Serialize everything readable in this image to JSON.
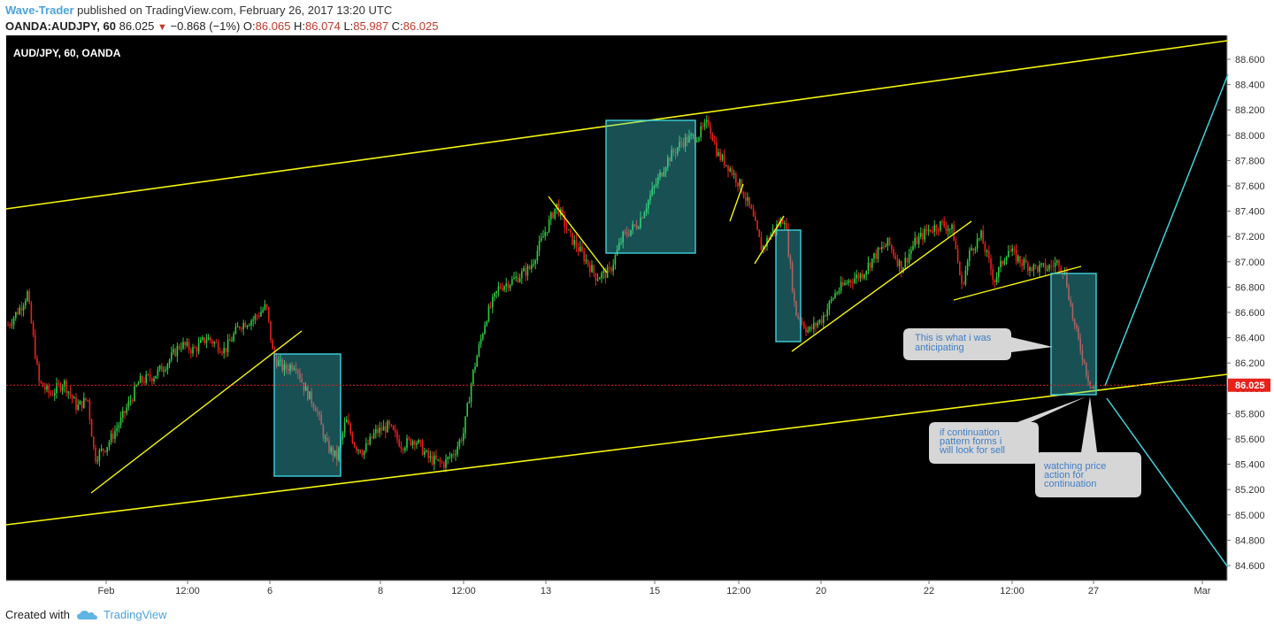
{
  "header": {
    "author": "Wave-Trader",
    "published": " published on TradingView.com, February 26, 2017 13:20 UTC"
  },
  "ohlc": {
    "symbol": "OANDA:AUDJPY, 60",
    "last": "86.025",
    "change": "−0.868 (−1%)",
    "o_label": "O:",
    "o": "86.065",
    "h_label": "H:",
    "h": "86.074",
    "l_label": "L:",
    "l": "85.987",
    "c_label": "C:",
    "c": "86.025"
  },
  "chart_data": {
    "type": "candlestick",
    "title": "AUD/JPY, 60, OANDA",
    "ylim": [
      84.5,
      88.75
    ],
    "y_ticks": [
      "84.600",
      "84.800",
      "85.000",
      "85.200",
      "85.400",
      "85.600",
      "85.800",
      "86.000",
      "86.200",
      "86.400",
      "86.600",
      "86.800",
      "87.000",
      "87.200",
      "87.400",
      "87.600",
      "87.800",
      "88.000",
      "88.200",
      "88.400",
      "88.600"
    ],
    "x_ticks": [
      "Feb",
      "12:00",
      "6",
      "8",
      "12:00",
      "13",
      "15",
      "12:00",
      "20",
      "22",
      "12:00",
      "27",
      "Mar"
    ],
    "current_price": "86.025",
    "path": [
      [
        0,
        86.5
      ],
      [
        15,
        86.65
      ],
      [
        22,
        86.75
      ],
      [
        35,
        86.05
      ],
      [
        48,
        85.95
      ],
      [
        63,
        86.05
      ],
      [
        78,
        85.85
      ],
      [
        90,
        85.92
      ],
      [
        98,
        85.45
      ],
      [
        112,
        85.55
      ],
      [
        128,
        85.75
      ],
      [
        148,
        86.05
      ],
      [
        165,
        86.1
      ],
      [
        180,
        86.2
      ],
      [
        195,
        86.35
      ],
      [
        210,
        86.3
      ],
      [
        225,
        86.4
      ],
      [
        245,
        86.3
      ],
      [
        262,
        86.5
      ],
      [
        278,
        86.55
      ],
      [
        292,
        86.65
      ],
      [
        300,
        86.25
      ],
      [
        312,
        86.15
      ],
      [
        325,
        86.2
      ],
      [
        335,
        86.0
      ],
      [
        348,
        85.85
      ],
      [
        360,
        85.55
      ],
      [
        372,
        85.45
      ],
      [
        382,
        85.75
      ],
      [
        392,
        85.55
      ],
      [
        402,
        85.5
      ],
      [
        415,
        85.65
      ],
      [
        430,
        85.7
      ],
      [
        445,
        85.55
      ],
      [
        460,
        85.6
      ],
      [
        475,
        85.45
      ],
      [
        492,
        85.4
      ],
      [
        505,
        85.5
      ],
      [
        515,
        85.65
      ],
      [
        525,
        86.1
      ],
      [
        540,
        86.55
      ],
      [
        555,
        86.8
      ],
      [
        570,
        86.85
      ],
      [
        590,
        86.95
      ],
      [
        605,
        87.2
      ],
      [
        620,
        87.45
      ],
      [
        635,
        87.2
      ],
      [
        650,
        87.05
      ],
      [
        665,
        86.88
      ],
      [
        680,
        86.92
      ],
      [
        695,
        87.2
      ],
      [
        712,
        87.3
      ],
      [
        728,
        87.55
      ],
      [
        745,
        87.8
      ],
      [
        762,
        87.95
      ],
      [
        780,
        88.0
      ],
      [
        792,
        88.1
      ],
      [
        802,
        87.85
      ],
      [
        815,
        87.75
      ],
      [
        828,
        87.6
      ],
      [
        840,
        87.4
      ],
      [
        852,
        87.1
      ],
      [
        865,
        87.25
      ],
      [
        878,
        87.35
      ],
      [
        890,
        86.6
      ],
      [
        905,
        86.45
      ],
      [
        920,
        86.55
      ],
      [
        935,
        86.75
      ],
      [
        950,
        86.85
      ],
      [
        965,
        86.9
      ],
      [
        980,
        87.05
      ],
      [
        995,
        87.15
      ],
      [
        1010,
        86.95
      ],
      [
        1025,
        87.15
      ],
      [
        1040,
        87.25
      ],
      [
        1055,
        87.3
      ],
      [
        1068,
        87.25
      ],
      [
        1078,
        86.8
      ],
      [
        1088,
        87.1
      ],
      [
        1100,
        87.2
      ],
      [
        1115,
        86.85
      ],
      [
        1130,
        87.1
      ],
      [
        1145,
        87.0
      ],
      [
        1160,
        86.95
      ],
      [
        1175,
        86.95
      ],
      [
        1188,
        87.0
      ],
      [
        1195,
        86.9
      ],
      [
        1205,
        86.5
      ],
      [
        1213,
        86.3
      ],
      [
        1220,
        86.1
      ],
      [
        1226,
        86.0
      ],
      [
        1230,
        86.03
      ]
    ]
  },
  "annotations": {
    "note1": [
      "This is what i was",
      "anticipating"
    ],
    "note2": [
      "if continuation",
      "pattern forms i",
      "will look for sell"
    ],
    "note3": [
      "watching price",
      "action for",
      "continuation"
    ]
  },
  "footer": {
    "created_with": "Created with",
    "brand": "TradingView"
  },
  "colors": {
    "background": "#000000",
    "up": "#2ecc40",
    "down": "#e8211b",
    "trendline": "#f5f50a",
    "box": "#3fd2dc",
    "projection": "#3fd2dc"
  }
}
